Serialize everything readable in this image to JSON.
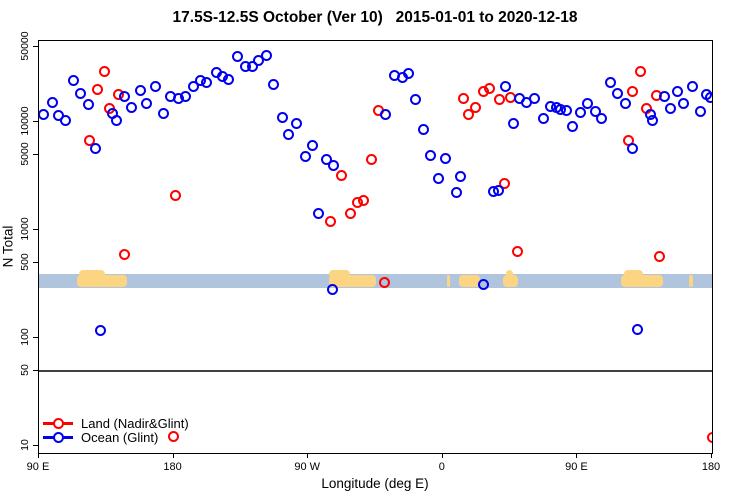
{
  "chart_data": {
    "type": "scatter",
    "title": "17.5S-12.5S October (Ver 10)   2015-01-01 to 2020-12-18",
    "xlabel": "Longitude (deg E)",
    "ylabel": "N Total",
    "x_axis": {
      "range": [
        90,
        540
      ],
      "note": "longitude axis spans 90E eastward through 180, 90W, 0, 90E to 180",
      "ticks": [
        {
          "value": 90,
          "label": "90 E"
        },
        {
          "value": 180,
          "label": "180"
        },
        {
          "value": 270,
          "label": "90 W"
        },
        {
          "value": 360,
          "label": "0"
        },
        {
          "value": 450,
          "label": "90 E"
        },
        {
          "value": 540,
          "label": "180"
        }
      ]
    },
    "y_axis": {
      "scale": "log",
      "range": [
        10,
        50000
      ],
      "ticks": [
        10,
        50,
        100,
        500,
        1000,
        5000,
        10000,
        50000
      ]
    },
    "reference_line_n": 50,
    "map_band": {
      "ocean_color": "#b0c4de",
      "land_color": "#fcd583",
      "top_n": 392,
      "bottom_n": 290,
      "land_segments": [
        {
          "lon": [
            115.5,
            148.8
          ],
          "bump": [
            117,
            134
          ]
        },
        {
          "lon": [
            283.9,
            315.3
          ],
          "bump": [
            284,
            298
          ]
        },
        {
          "lon": [
            362.8,
            364.8
          ]
        },
        {
          "lon": [
            370.8,
            384.9
          ]
        },
        {
          "lon": [
            400.3,
            410.3
          ],
          "bump": [
            402,
            407
          ]
        },
        {
          "lon": [
            479.2,
            507.3
          ],
          "bump": [
            481,
            494
          ]
        },
        {
          "lon": [
            524.6,
            527.5
          ]
        }
      ]
    },
    "series": [
      {
        "name": "Land (Nadir&Glint)",
        "color": "#ff0000",
        "points": [
          [
            124,
            6670
          ],
          [
            129,
            19800
          ],
          [
            134,
            29600
          ],
          [
            137,
            13300
          ],
          [
            143,
            17800
          ],
          [
            147,
            587
          ],
          [
            180,
            12.2
          ],
          [
            181,
            2065
          ],
          [
            285,
            1190
          ],
          [
            292,
            3180
          ],
          [
            298,
            1420
          ],
          [
            303,
            1800
          ],
          [
            307,
            1880
          ],
          [
            312,
            4540
          ],
          [
            317,
            12800
          ],
          [
            321,
            325
          ],
          [
            374,
            16400
          ],
          [
            377,
            11800
          ],
          [
            382,
            13600
          ],
          [
            387,
            19000
          ],
          [
            391,
            20300
          ],
          [
            398,
            16200
          ],
          [
            401,
            2670
          ],
          [
            405,
            16800
          ],
          [
            410,
            631
          ],
          [
            484,
            6670
          ],
          [
            487,
            19100
          ],
          [
            492,
            29200
          ],
          [
            496,
            13300
          ],
          [
            503,
            17700
          ],
          [
            505,
            574
          ],
          [
            540,
            11.9
          ]
        ]
      },
      {
        "name": "Ocean (Glint)",
        "color": "#0000f0",
        "points": [
          [
            93,
            11800
          ],
          [
            99,
            15000
          ],
          [
            103,
            11600
          ],
          [
            108,
            10400
          ],
          [
            113,
            24000
          ],
          [
            118,
            18300
          ],
          [
            123,
            14500
          ],
          [
            128,
            5680
          ],
          [
            131,
            118
          ],
          [
            139,
            12000
          ],
          [
            142,
            10400
          ],
          [
            147,
            17100
          ],
          [
            152,
            13600
          ],
          [
            158,
            19400
          ],
          [
            162,
            14800
          ],
          [
            168,
            21200
          ],
          [
            173,
            12000
          ],
          [
            178,
            17400
          ],
          [
            183,
            16400
          ],
          [
            188,
            17100
          ],
          [
            193,
            21500
          ],
          [
            198,
            24000
          ],
          [
            202,
            23000
          ],
          [
            209,
            28600
          ],
          [
            213,
            26300
          ],
          [
            217,
            24500
          ],
          [
            223,
            40500
          ],
          [
            228,
            32700
          ],
          [
            233,
            32600
          ],
          [
            237,
            37300
          ],
          [
            242,
            41400
          ],
          [
            247,
            22100
          ],
          [
            253,
            10900
          ],
          [
            257,
            7740
          ],
          [
            262,
            9730
          ],
          [
            268,
            4770
          ],
          [
            273,
            6080
          ],
          [
            277,
            1420
          ],
          [
            282,
            4450
          ],
          [
            286,
            283
          ],
          [
            287,
            3960
          ],
          [
            322,
            11700
          ],
          [
            328,
            27000
          ],
          [
            333,
            25700
          ],
          [
            337,
            28000
          ],
          [
            342,
            16200
          ],
          [
            347,
            8490
          ],
          [
            352,
            4880
          ],
          [
            357,
            3000
          ],
          [
            362,
            4570
          ],
          [
            369,
            2210
          ],
          [
            372,
            3160
          ],
          [
            387,
            314
          ],
          [
            394,
            2260
          ],
          [
            397,
            2340
          ],
          [
            402,
            21500
          ],
          [
            407,
            9640
          ],
          [
            411,
            16400
          ],
          [
            416,
            15100
          ],
          [
            421,
            16400
          ],
          [
            427,
            10700
          ],
          [
            432,
            13900
          ],
          [
            436,
            13500
          ],
          [
            439,
            13100
          ],
          [
            443,
            12800
          ],
          [
            447,
            9180
          ],
          [
            452,
            12200
          ],
          [
            457,
            14900
          ],
          [
            462,
            12400
          ],
          [
            466,
            10800
          ],
          [
            472,
            23300
          ],
          [
            477,
            18200
          ],
          [
            482,
            14800
          ],
          [
            487,
            5700
          ],
          [
            490,
            119
          ],
          [
            499,
            11800
          ],
          [
            500,
            10400
          ],
          [
            508,
            17400
          ],
          [
            512,
            13400
          ],
          [
            517,
            19100
          ],
          [
            521,
            14800
          ],
          [
            527,
            21200
          ],
          [
            532,
            12600
          ],
          [
            536,
            17800
          ],
          [
            539,
            16800
          ]
        ]
      }
    ],
    "legend_position": "bottom-left"
  }
}
